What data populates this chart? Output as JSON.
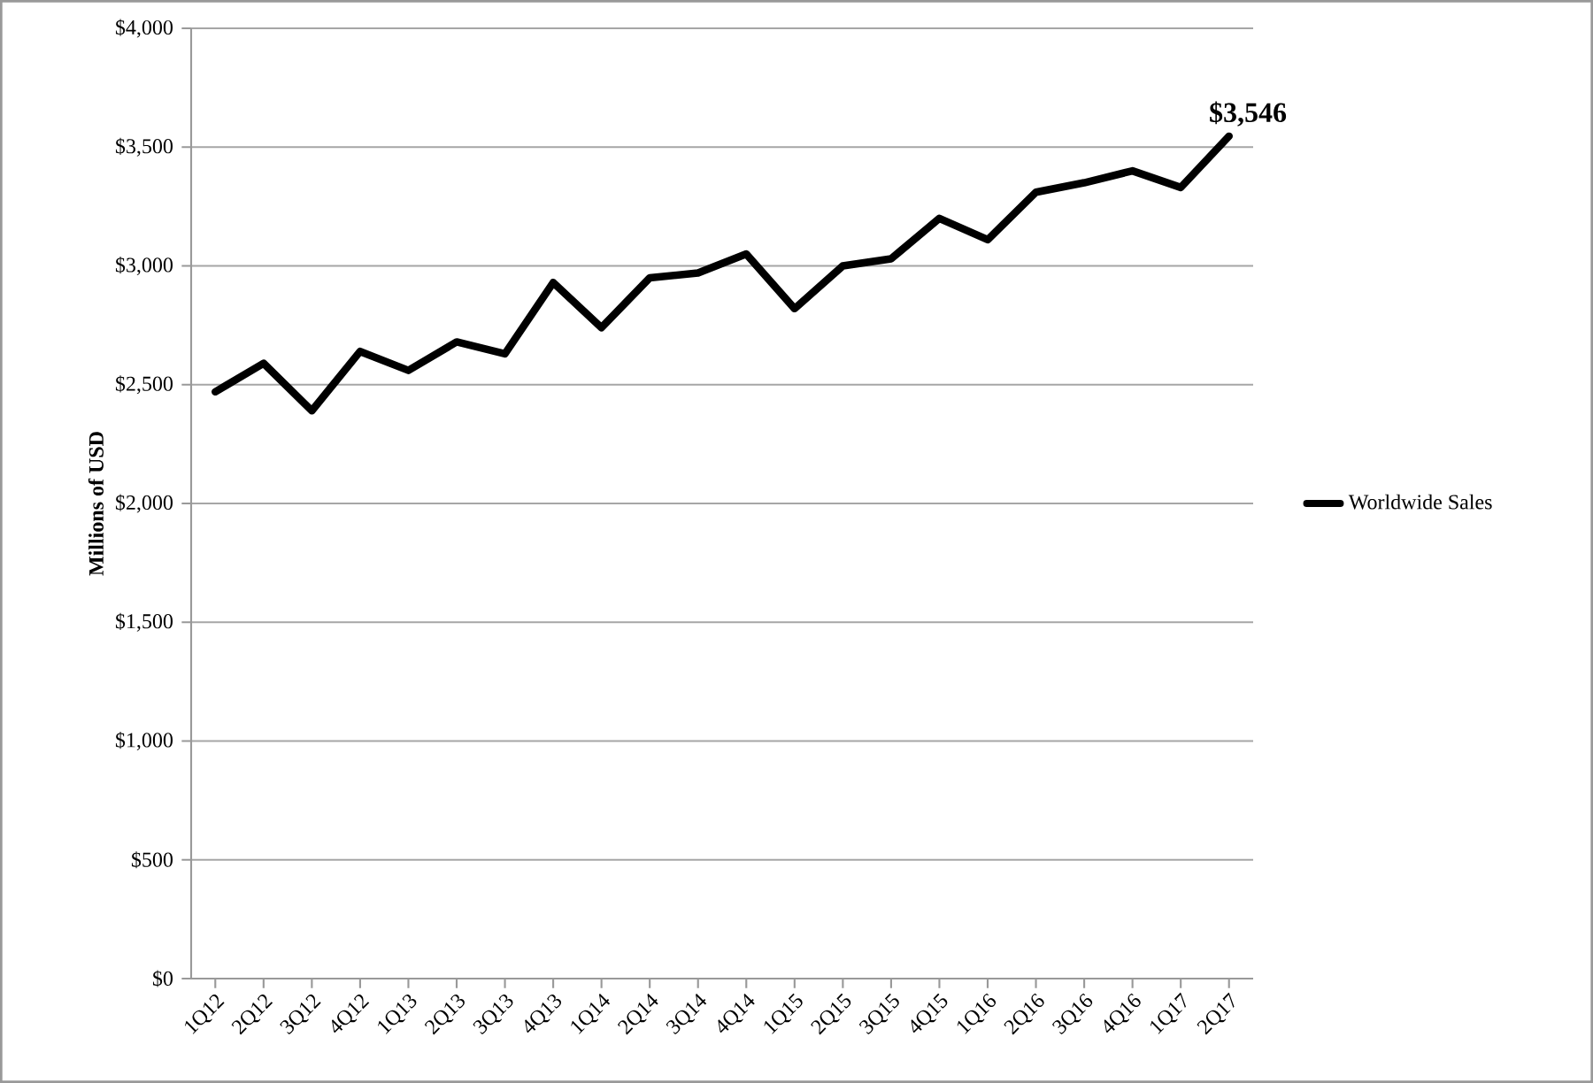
{
  "chart_data": {
    "type": "line",
    "ylabel": "Millions of USD",
    "categories": [
      "1Q12",
      "2Q12",
      "3Q12",
      "4Q12",
      "1Q13",
      "2Q13",
      "3Q13",
      "4Q13",
      "1Q14",
      "2Q14",
      "3Q14",
      "4Q14",
      "1Q15",
      "2Q15",
      "3Q15",
      "4Q15",
      "1Q16",
      "2Q16",
      "3Q16",
      "4Q16",
      "1Q17",
      "2Q17"
    ],
    "series": [
      {
        "name": "Worldwide Sales",
        "color": "#000000",
        "values": [
          2470,
          2590,
          2390,
          2640,
          2560,
          2680,
          2630,
          2930,
          2740,
          2950,
          2970,
          3050,
          2820,
          3000,
          3030,
          3200,
          3110,
          3310,
          3350,
          3400,
          3330,
          3546
        ],
        "value_labels": [
          null,
          null,
          null,
          null,
          null,
          null,
          null,
          null,
          null,
          null,
          null,
          null,
          null,
          null,
          null,
          null,
          null,
          null,
          null,
          null,
          null,
          "$3,546"
        ]
      }
    ],
    "ylim": [
      0,
      4000
    ],
    "yticks": [
      {
        "value": 0,
        "label": "$0"
      },
      {
        "value": 500,
        "label": "$500"
      },
      {
        "value": 1000,
        "label": "$1,000"
      },
      {
        "value": 1500,
        "label": "$1,500"
      },
      {
        "value": 2000,
        "label": "$2,000"
      },
      {
        "value": 2500,
        "label": "$2,500"
      },
      {
        "value": 3000,
        "label": "$3,000"
      },
      {
        "value": 3500,
        "label": "$3,500"
      },
      {
        "value": 4000,
        "label": "$4,000"
      }
    ],
    "grid": "y",
    "legend": "right",
    "marker": "none",
    "line_style": "solid"
  }
}
